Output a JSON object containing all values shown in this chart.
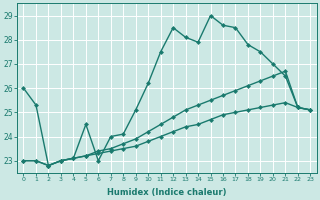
{
  "xlabel": "Humidex (Indice chaleur)",
  "bg_color": "#cce8e4",
  "grid_color": "#ffffff",
  "line_color": "#1a7a6e",
  "markersize": 2.5,
  "linewidth": 1.0,
  "xlim": [
    -0.5,
    23.5
  ],
  "ylim": [
    22.5,
    29.5
  ],
  "xticks": [
    0,
    1,
    2,
    3,
    4,
    5,
    6,
    7,
    8,
    9,
    10,
    11,
    12,
    13,
    14,
    15,
    16,
    17,
    18,
    19,
    20,
    21,
    22,
    23
  ],
  "yticks": [
    23,
    24,
    25,
    26,
    27,
    28,
    29
  ],
  "line1": {
    "x": [
      0,
      1,
      2,
      3,
      4,
      5,
      6,
      7,
      8,
      9,
      10,
      11,
      12,
      13,
      14,
      15,
      16,
      17,
      18,
      19,
      20,
      21,
      22,
      23
    ],
    "y": [
      26.0,
      25.3,
      22.8,
      23.0,
      23.1,
      24.5,
      23.0,
      24.0,
      24.1,
      25.1,
      26.2,
      27.5,
      28.5,
      28.1,
      27.9,
      29.0,
      28.6,
      28.5,
      27.8,
      27.5,
      27.0,
      26.5,
      25.2,
      25.1
    ]
  },
  "line2": {
    "x": [
      0,
      1,
      2,
      3,
      4,
      5,
      6,
      7,
      8,
      9,
      10,
      11,
      12,
      13,
      14,
      15,
      16,
      17,
      18,
      19,
      20,
      21,
      22,
      23
    ],
    "y": [
      23.0,
      23.0,
      22.8,
      23.0,
      23.1,
      23.2,
      23.4,
      23.5,
      23.7,
      23.9,
      24.2,
      24.5,
      24.8,
      25.1,
      25.3,
      25.5,
      25.7,
      25.9,
      26.1,
      26.3,
      26.5,
      26.7,
      25.2,
      25.1
    ]
  },
  "line3": {
    "x": [
      0,
      1,
      2,
      3,
      4,
      5,
      6,
      7,
      8,
      9,
      10,
      11,
      12,
      13,
      14,
      15,
      16,
      17,
      18,
      19,
      20,
      21,
      22,
      23
    ],
    "y": [
      23.0,
      23.0,
      22.8,
      23.0,
      23.1,
      23.2,
      23.3,
      23.4,
      23.5,
      23.6,
      23.8,
      24.0,
      24.2,
      24.4,
      24.5,
      24.7,
      24.9,
      25.0,
      25.1,
      25.2,
      25.3,
      25.4,
      25.2,
      25.1
    ]
  }
}
